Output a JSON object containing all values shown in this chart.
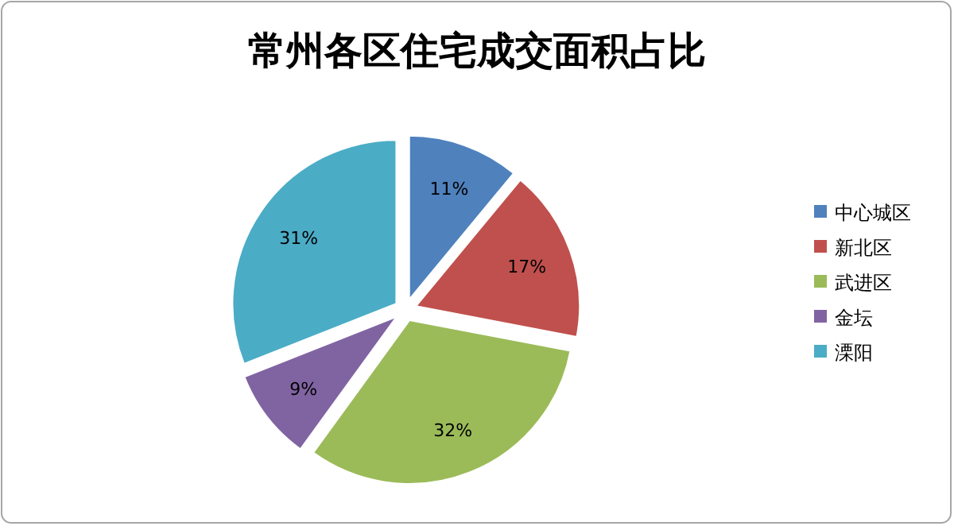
{
  "chart_data": {
    "type": "pie",
    "title": "常州各区住宅成交面积占比",
    "categories": [
      "中心城区",
      "新北区",
      "武进区",
      "金坛",
      "溧阳"
    ],
    "values": [
      11,
      17,
      32,
      9,
      31
    ],
    "colors": [
      "#4f81bd",
      "#c0504d",
      "#9bbb59",
      "#8064a2",
      "#4bacc6"
    ],
    "value_labels": [
      "11%",
      "17%",
      "32%",
      "9%",
      "31%"
    ],
    "legend": "right"
  }
}
